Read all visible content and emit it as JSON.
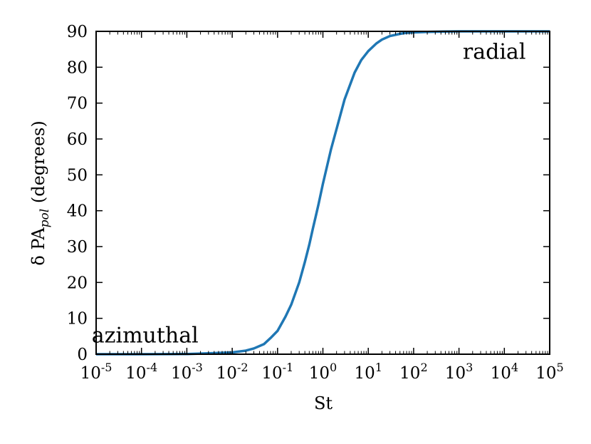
{
  "chart_data": {
    "type": "line",
    "xscale": "log",
    "xlim": [
      1e-05,
      100000
    ],
    "ylim": [
      0,
      90
    ],
    "xlabel": "St",
    "ylabel": {
      "prefix": "δ PA",
      "subscript": "pol",
      "suffix": " (degrees)"
    },
    "xticks": [
      {
        "value": 1e-05,
        "base": "10",
        "exp": "-5"
      },
      {
        "value": 0.0001,
        "base": "10",
        "exp": "-4"
      },
      {
        "value": 0.001,
        "base": "10",
        "exp": "-3"
      },
      {
        "value": 0.01,
        "base": "10",
        "exp": "-2"
      },
      {
        "value": 0.1,
        "base": "10",
        "exp": "-1"
      },
      {
        "value": 1,
        "base": "10",
        "exp": "0"
      },
      {
        "value": 10,
        "base": "10",
        "exp": "1"
      },
      {
        "value": 100,
        "base": "10",
        "exp": "2"
      },
      {
        "value": 1000,
        "base": "10",
        "exp": "3"
      },
      {
        "value": 10000,
        "base": "10",
        "exp": "4"
      },
      {
        "value": 100000,
        "base": "10",
        "exp": "5"
      }
    ],
    "yticks": [
      0,
      10,
      20,
      30,
      40,
      50,
      60,
      70,
      80,
      90
    ],
    "grid": false,
    "annotations": [
      {
        "text": "azimuthal",
        "x": 0.00012,
        "y": 5.5
      },
      {
        "text": "radial",
        "x": 6000,
        "y": 84.5
      }
    ],
    "series": [
      {
        "color": "#1f77b4",
        "x": [
          1e-05,
          0.0001,
          0.001,
          0.003,
          0.01,
          0.02,
          0.03,
          0.05,
          0.07,
          0.1,
          0.15,
          0.2,
          0.3,
          0.4,
          0.5,
          0.6,
          0.7,
          0.8,
          1,
          1.5,
          2,
          3,
          5,
          7,
          10,
          15,
          20,
          30,
          50,
          70,
          100,
          200,
          500,
          1000,
          10000,
          100000
        ],
        "y": [
          0.0,
          0.0,
          0.05,
          0.25,
          0.5,
          1.0,
          1.6,
          2.8,
          4.5,
          6.5,
          10.5,
          13.8,
          20.0,
          25.7,
          30.5,
          35.0,
          38.6,
          41.8,
          47.5,
          57.0,
          62.8,
          71.0,
          78.5,
          82.0,
          84.5,
          86.6,
          87.7,
          88.7,
          89.3,
          89.6,
          89.7,
          89.85,
          89.95,
          90.0,
          90.0,
          90.0
        ]
      }
    ]
  }
}
